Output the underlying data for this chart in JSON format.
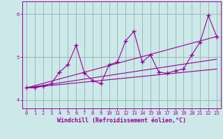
{
  "xlabel": "Windchill (Refroidissement éolien,°C)",
  "bg_color": "#cce8e8",
  "line_color": "#990099",
  "grid_color": "#99bbbb",
  "xlim": [
    -0.5,
    23.5
  ],
  "ylim": [
    3.8,
    6.3
  ],
  "yticks": [
    4,
    5,
    6
  ],
  "xticks": [
    0,
    1,
    2,
    3,
    4,
    5,
    6,
    7,
    8,
    9,
    10,
    11,
    12,
    13,
    14,
    15,
    16,
    17,
    18,
    19,
    20,
    21,
    22,
    23
  ],
  "series1_x": [
    0,
    1,
    2,
    3,
    4,
    5,
    6,
    7,
    8,
    9,
    10,
    11,
    12,
    13,
    14,
    15,
    16,
    17,
    18,
    19,
    20,
    21,
    22,
    23
  ],
  "series1_y": [
    4.28,
    4.28,
    4.32,
    4.38,
    4.65,
    4.82,
    5.27,
    4.63,
    4.45,
    4.38,
    4.82,
    4.88,
    5.38,
    5.6,
    4.88,
    5.05,
    4.65,
    4.62,
    4.68,
    4.72,
    5.05,
    5.35,
    5.97,
    5.48
  ],
  "line1_x": [
    0,
    23
  ],
  "line1_y": [
    4.28,
    4.72
  ],
  "line2_x": [
    0,
    23
  ],
  "line2_y": [
    4.28,
    4.95
  ],
  "line3_x": [
    0,
    23
  ],
  "line3_y": [
    4.28,
    5.48
  ]
}
